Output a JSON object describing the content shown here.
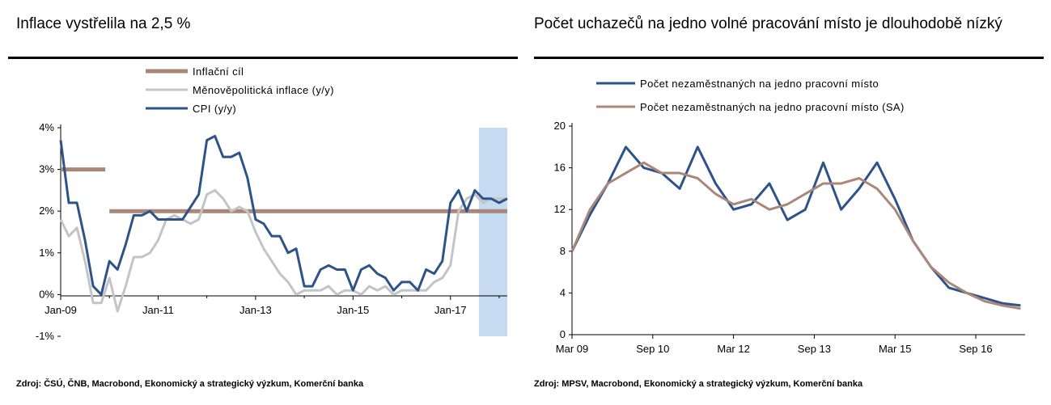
{
  "left": {
    "title": "Inflace vystřelila na 2,5 %",
    "source": "Zdroj: ČSÚ, ČNB, Macrobond, Ekonomický a strategický výzkum, Komerční banka",
    "chart_data": {
      "type": "line",
      "xlabel": "",
      "ylabel": "",
      "x_tick_labels": [
        "Jan-09",
        "Jan-11",
        "Jan-13",
        "Jan-15",
        "Jan-17"
      ],
      "y_tick_labels": [
        "4%",
        "3%",
        "2%",
        "1%",
        "0%",
        "-1%"
      ],
      "x_range": [
        "2009-01",
        "2018-03"
      ],
      "ylim": [
        -1,
        4
      ],
      "grid": false,
      "legend_position": "top-left",
      "shaded_region": {
        "from": "2017-08",
        "to": "2018-03",
        "color": "#c6dbf1"
      },
      "series": [
        {
          "name": "Inflační cíl",
          "color": "#a9887a",
          "segments": [
            {
              "x": [
                "2009-01",
                "2009-12"
              ],
              "y": [
                3,
                3
              ]
            },
            {
              "x": [
                "2010-01",
                "2018-03"
              ],
              "y": [
                2,
                2
              ]
            }
          ]
        },
        {
          "name": "Měnověpolitická inflace (y/y)",
          "color": "#c3c4c6",
          "x": [
            "2009-01",
            "2009-03",
            "2009-05",
            "2009-07",
            "2009-09",
            "2009-11",
            "2010-01",
            "2010-03",
            "2010-05",
            "2010-07",
            "2010-09",
            "2010-11",
            "2011-01",
            "2011-03",
            "2011-05",
            "2011-07",
            "2011-09",
            "2011-11",
            "2012-01",
            "2012-03",
            "2012-05",
            "2012-07",
            "2012-09",
            "2012-11",
            "2013-01",
            "2013-03",
            "2013-05",
            "2013-07",
            "2013-09",
            "2013-11",
            "2014-01",
            "2014-03",
            "2014-05",
            "2014-07",
            "2014-09",
            "2014-11",
            "2015-01",
            "2015-03",
            "2015-05",
            "2015-07",
            "2015-09",
            "2015-11",
            "2016-01",
            "2016-03",
            "2016-05",
            "2016-07",
            "2016-09",
            "2016-11",
            "2017-01",
            "2017-03",
            "2017-05",
            "2017-07",
            "2017-09",
            "2017-11",
            "2018-01",
            "2018-03"
          ],
          "y": [
            1.8,
            1.4,
            1.6,
            0.8,
            -0.2,
            -0.2,
            0.4,
            -0.4,
            0.2,
            0.9,
            0.9,
            1.0,
            1.3,
            1.8,
            1.9,
            1.8,
            1.7,
            1.8,
            2.4,
            2.5,
            2.3,
            2.0,
            2.1,
            2.0,
            1.5,
            1.1,
            0.8,
            0.5,
            0.3,
            0.0,
            0.1,
            0.1,
            0.1,
            0.2,
            0.0,
            0.1,
            0.1,
            0.0,
            0.2,
            0.1,
            0.2,
            0.0,
            0.1,
            0.1,
            0.1,
            0.1,
            0.3,
            0.4,
            0.7,
            2.0,
            2.3,
            2.4,
            2.2,
            2.3,
            2.3,
            2.3
          ]
        },
        {
          "name": "CPI (y/y)",
          "color": "#2e5388",
          "x": [
            "2009-01",
            "2009-03",
            "2009-05",
            "2009-07",
            "2009-09",
            "2009-11",
            "2010-01",
            "2010-03",
            "2010-05",
            "2010-07",
            "2010-09",
            "2010-11",
            "2011-01",
            "2011-03",
            "2011-05",
            "2011-07",
            "2011-09",
            "2011-11",
            "2012-01",
            "2012-03",
            "2012-05",
            "2012-07",
            "2012-09",
            "2012-11",
            "2013-01",
            "2013-03",
            "2013-05",
            "2013-07",
            "2013-09",
            "2013-11",
            "2014-01",
            "2014-03",
            "2014-05",
            "2014-07",
            "2014-09",
            "2014-11",
            "2015-01",
            "2015-03",
            "2015-05",
            "2015-07",
            "2015-09",
            "2015-11",
            "2016-01",
            "2016-03",
            "2016-05",
            "2016-07",
            "2016-09",
            "2016-11",
            "2017-01",
            "2017-03",
            "2017-05",
            "2017-07",
            "2017-09",
            "2017-11",
            "2018-01",
            "2018-03"
          ],
          "y": [
            3.7,
            2.2,
            2.2,
            1.3,
            0.2,
            0.0,
            0.8,
            0.6,
            1.2,
            1.9,
            1.9,
            2.0,
            1.8,
            1.8,
            1.8,
            1.8,
            2.1,
            2.4,
            3.7,
            3.8,
            3.3,
            3.3,
            3.4,
            2.8,
            1.8,
            1.7,
            1.4,
            1.4,
            1.0,
            1.1,
            0.2,
            0.2,
            0.6,
            0.7,
            0.6,
            0.6,
            0.1,
            0.6,
            0.7,
            0.5,
            0.4,
            0.1,
            0.3,
            0.3,
            0.1,
            0.6,
            0.5,
            0.8,
            2.2,
            2.5,
            2.0,
            2.5,
            2.3,
            2.3,
            2.2,
            2.3
          ]
        }
      ]
    }
  },
  "right": {
    "title": "Počet uchazečů na jedno volné pracování místo je dlouhodobě nízký",
    "source": "Zdroj: MPSV, Macrobond, Ekonomický a strategický výzkum, Komerční banka",
    "chart_data": {
      "type": "line",
      "xlabel": "",
      "ylabel": "",
      "x_tick_labels": [
        "Mar 09",
        "Sep 10",
        "Mar 12",
        "Sep 13",
        "Mar 15",
        "Sep 16"
      ],
      "y_tick_labels": [
        "20",
        "16",
        "12",
        "8",
        "4",
        "0"
      ],
      "x_range": [
        "2009-03",
        "2017-08"
      ],
      "ylim": [
        0,
        20
      ],
      "grid": false,
      "legend_position": "top-left",
      "series": [
        {
          "name": "Počet nezaměstnaných na jedno pracovní místo",
          "color": "#2e5388",
          "x": [
            "2009-03",
            "2009-07",
            "2009-11",
            "2010-03",
            "2010-07",
            "2010-11",
            "2011-03",
            "2011-07",
            "2011-11",
            "2012-03",
            "2012-07",
            "2012-11",
            "2013-03",
            "2013-07",
            "2013-11",
            "2014-03",
            "2014-07",
            "2014-11",
            "2015-03",
            "2015-07",
            "2015-11",
            "2016-03",
            "2016-07",
            "2016-11",
            "2017-03",
            "2017-07"
          ],
          "y": [
            8.0,
            11.5,
            14.5,
            18.0,
            16.0,
            15.5,
            14.0,
            18.0,
            14.5,
            12.0,
            12.5,
            14.5,
            11.0,
            12.0,
            16.5,
            12.0,
            14.0,
            16.5,
            13.0,
            9.0,
            6.5,
            4.5,
            4.0,
            3.5,
            3.0,
            2.8
          ]
        },
        {
          "name": "Počet nezaměstnaných na jedno pracovní místo (SA)",
          "color": "#a9887a",
          "x": [
            "2009-03",
            "2009-07",
            "2009-11",
            "2010-03",
            "2010-07",
            "2010-11",
            "2011-03",
            "2011-07",
            "2011-11",
            "2012-03",
            "2012-07",
            "2012-11",
            "2013-03",
            "2013-07",
            "2013-11",
            "2014-03",
            "2014-07",
            "2014-11",
            "2015-03",
            "2015-07",
            "2015-11",
            "2016-03",
            "2016-07",
            "2016-11",
            "2017-03",
            "2017-07"
          ],
          "y": [
            8.0,
            12.0,
            14.5,
            15.5,
            16.5,
            15.5,
            15.5,
            15.0,
            13.5,
            12.5,
            13.0,
            12.0,
            12.5,
            13.5,
            14.5,
            14.5,
            15.0,
            14.0,
            12.0,
            9.0,
            6.5,
            5.0,
            4.0,
            3.2,
            2.8,
            2.5
          ]
        }
      ]
    }
  }
}
